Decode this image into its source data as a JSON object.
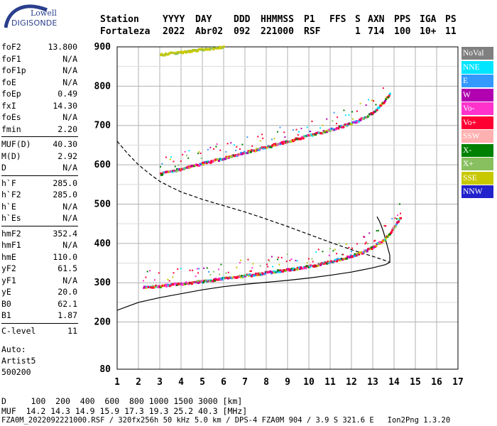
{
  "logo": {
    "line1": "Lowell",
    "line2": "DIGISONDE"
  },
  "header": {
    "labels": [
      "Station",
      "YYYY",
      "DAY",
      "DDD",
      "HHMMSS",
      "P1",
      "FFS",
      "S",
      "AXN",
      "PPS",
      "IGA",
      "PS"
    ],
    "values": [
      "Fortaleza",
      "2022",
      "Abr02",
      "092",
      "221000",
      "RSF",
      "1",
      "714",
      "100",
      "10+",
      "11"
    ]
  },
  "params": [
    {
      "label": "foF2",
      "value": "13.800"
    },
    {
      "label": "foF1",
      "value": "N/A"
    },
    {
      "label": "foF1p",
      "value": "N/A"
    },
    {
      "label": "foE",
      "value": "N/A"
    },
    {
      "label": "foEp",
      "value": "0.49"
    },
    {
      "label": "fxI",
      "value": "14.30"
    },
    {
      "label": "foEs",
      "value": "N/A"
    },
    {
      "label": "fmin",
      "value": "2.20"
    },
    {
      "label": "MUF(D)",
      "value": "40.30"
    },
    {
      "label": "M(D)",
      "value": "2.92"
    },
    {
      "label": "D",
      "value": "N/A"
    },
    {
      "label": "h`F",
      "value": "285.0"
    },
    {
      "label": "h`F2",
      "value": "285.0"
    },
    {
      "label": "h`E",
      "value": "N/A"
    },
    {
      "label": "h`Es",
      "value": "N/A"
    },
    {
      "label": "hmF2",
      "value": "352.4"
    },
    {
      "label": "hmF1",
      "value": "N/A"
    },
    {
      "label": "hmE",
      "value": "110.0"
    },
    {
      "label": "yF2",
      "value": "61.5"
    },
    {
      "label": "yF1",
      "value": "N/A"
    },
    {
      "label": "yE",
      "value": "20.0"
    },
    {
      "label": "B0",
      "value": "62.1"
    },
    {
      "label": "B1",
      "value": "1.87"
    },
    {
      "label": "C-level",
      "value": "11"
    }
  ],
  "auto": {
    "line1": "Auto:",
    "line2": "Artist5",
    "line3": "500200"
  },
  "legend": [
    {
      "label": "NoVal",
      "color": "#808080"
    },
    {
      "label": "NNE",
      "color": "#00e5ff"
    },
    {
      "label": "E",
      "color": "#3399ff"
    },
    {
      "label": "W",
      "color": "#b000b0"
    },
    {
      "label": "Vo-",
      "color": "#ff33cc"
    },
    {
      "label": "Vo+",
      "color": "#ff0033"
    },
    {
      "label": "SSW",
      "color": "#ffb0b0"
    },
    {
      "label": "X-",
      "color": "#008000"
    },
    {
      "label": "X+",
      "color": "#88c060"
    },
    {
      "label": "SSE",
      "color": "#c8c800"
    },
    {
      "label": "NNW",
      "color": "#2222cc"
    }
  ],
  "footer": {
    "line1": "D     100  200  400  600  800 1000 1500 3000 [km]",
    "line2": "MUF  14.2 14.3 14.9 15.9 17.3 19.3 25.2 40.3 [MHz]",
    "line3": "FZA0M_2022092221000.RSF / 320fx256h 50 kHz 5.0 km / DPS-4 FZA0M 904 / 3.9 S 321.6 E   Ion2Png 1.3.20"
  },
  "chart_data": {
    "type": "scatter",
    "title": "",
    "xlabel": "",
    "ylabel": "",
    "xlim": [
      1,
      17
    ],
    "ylim": [
      80,
      900
    ],
    "x_ticks": [
      "1",
      "2",
      "3",
      "4",
      "5",
      "6",
      "7",
      "8",
      "9",
      "10",
      "11",
      "12",
      "13",
      "14",
      "15",
      "16",
      "17"
    ],
    "y_ticks": [
      "80",
      "200",
      "300",
      "400",
      "500",
      "600",
      "700",
      "800",
      "900"
    ],
    "y_tick_values": [
      80,
      200,
      300,
      400,
      500,
      600,
      700,
      800,
      900
    ],
    "grid": true,
    "series": [
      {
        "kind": "trace",
        "color": "#ff0033",
        "points": [
          [
            2.2,
            288
          ],
          [
            3,
            292
          ],
          [
            4,
            298
          ],
          [
            5,
            304
          ],
          [
            6,
            311
          ],
          [
            7,
            318
          ],
          [
            8,
            326
          ],
          [
            9,
            333
          ],
          [
            10,
            342
          ],
          [
            11,
            354
          ],
          [
            11.5,
            361
          ],
          [
            12,
            369
          ],
          [
            12.5,
            378
          ],
          [
            13,
            392
          ],
          [
            13.5,
            410
          ],
          [
            13.8,
            428
          ],
          [
            14.1,
            452
          ],
          [
            14.3,
            468
          ]
        ]
      },
      {
        "kind": "trace",
        "color": "#ff0033",
        "points": [
          [
            3,
            577
          ],
          [
            4,
            590
          ],
          [
            5,
            604
          ],
          [
            6,
            617
          ],
          [
            7,
            632
          ],
          [
            8,
            646
          ],
          [
            9,
            660
          ],
          [
            10,
            675
          ],
          [
            11,
            690
          ],
          [
            11.5,
            698
          ],
          [
            12,
            706
          ],
          [
            12.5,
            718
          ],
          [
            13,
            734
          ],
          [
            13.5,
            760
          ],
          [
            13.8,
            785
          ]
        ]
      },
      {
        "kind": "trace",
        "color": "#c8c800",
        "points": [
          [
            3,
            880
          ],
          [
            3.5,
            884
          ],
          [
            4,
            887
          ],
          [
            4.5,
            891
          ],
          [
            5,
            894
          ],
          [
            5.5,
            897
          ],
          [
            6,
            899
          ]
        ]
      },
      {
        "kind": "profile-solid",
        "color": "#000000",
        "points": [
          [
            1,
            230
          ],
          [
            1.5,
            240
          ],
          [
            2,
            250
          ],
          [
            3,
            262
          ],
          [
            4,
            272
          ],
          [
            5,
            282
          ],
          [
            6,
            290
          ],
          [
            7,
            296
          ],
          [
            8,
            301
          ],
          [
            9,
            306
          ],
          [
            10,
            312
          ],
          [
            11,
            319
          ],
          [
            12,
            327
          ],
          [
            13,
            338
          ],
          [
            13.6,
            346
          ],
          [
            13.8,
            352
          ],
          [
            13.8,
            370
          ],
          [
            13.7,
            390
          ],
          [
            13.6,
            410
          ],
          [
            13.5,
            430
          ],
          [
            13.4,
            445
          ],
          [
            13.3,
            458
          ],
          [
            13.2,
            468
          ]
        ]
      },
      {
        "kind": "profile-dashed",
        "color": "#000000",
        "points": [
          [
            1,
            660
          ],
          [
            1.5,
            628
          ],
          [
            2,
            600
          ],
          [
            2.5,
            578
          ],
          [
            3,
            558
          ],
          [
            3.5,
            544
          ],
          [
            4,
            531
          ],
          [
            5,
            512
          ],
          [
            6,
            496
          ],
          [
            7,
            480
          ],
          [
            8,
            462
          ],
          [
            9,
            443
          ],
          [
            10,
            423
          ],
          [
            11,
            403
          ],
          [
            12,
            384
          ],
          [
            13,
            367
          ],
          [
            13.5,
            358
          ],
          [
            13.8,
            352
          ]
        ]
      }
    ]
  }
}
